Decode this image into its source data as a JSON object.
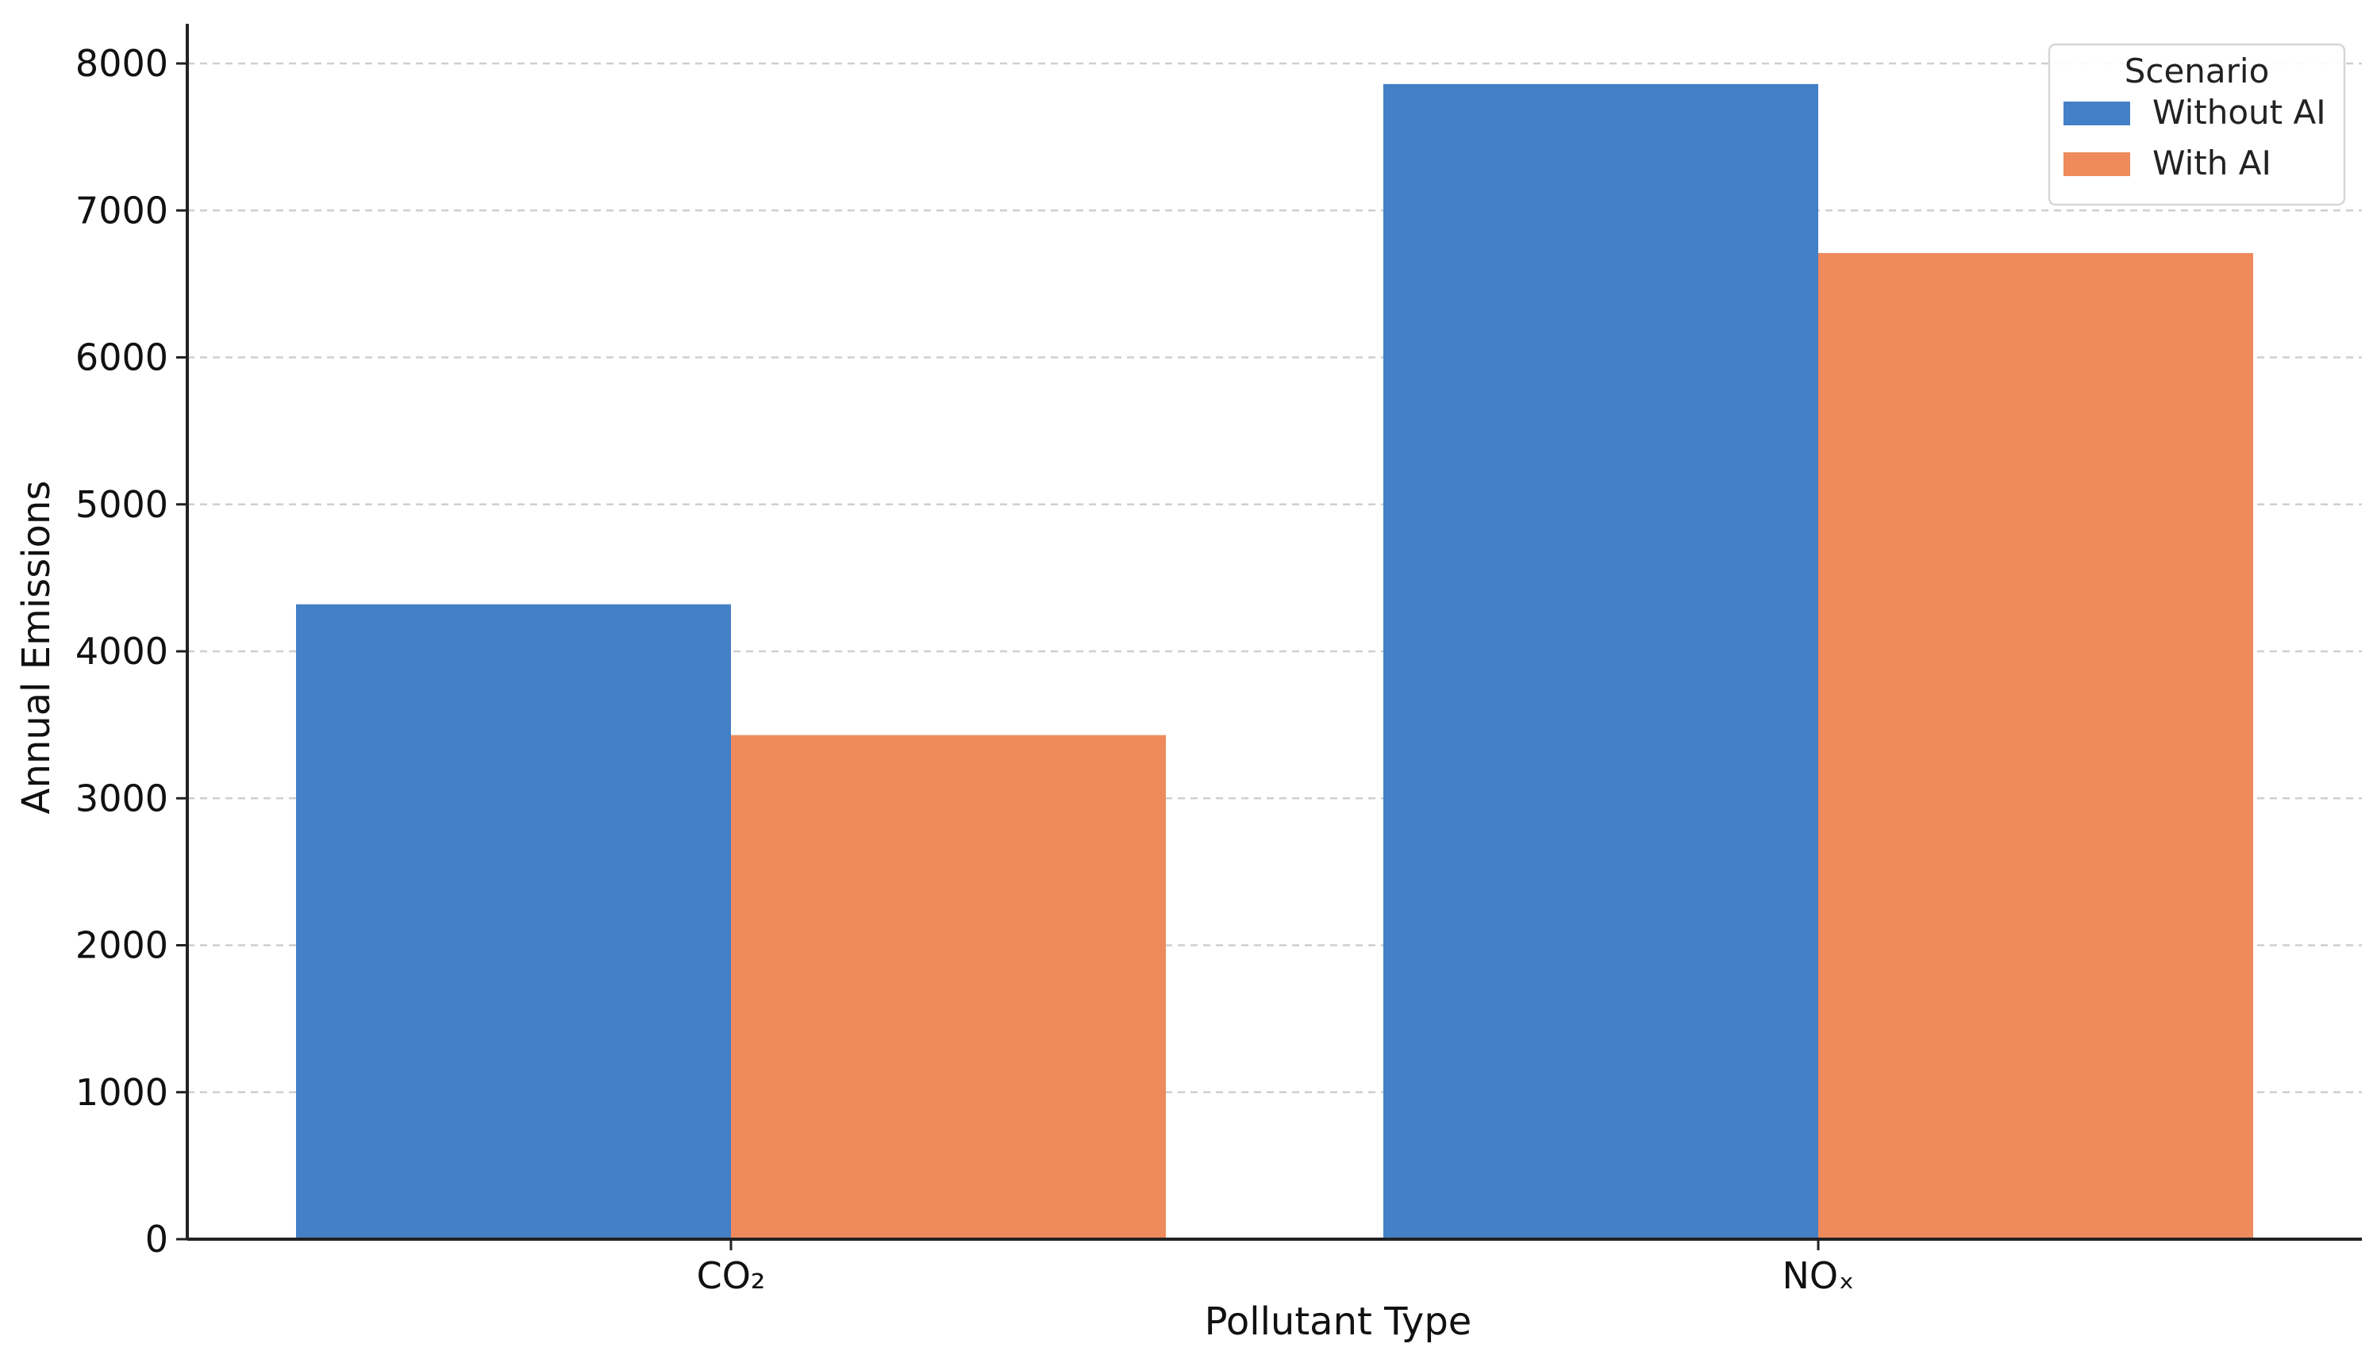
{
  "chart_data": {
    "type": "bar",
    "categories": [
      "CO₂",
      "NOₓ"
    ],
    "series": [
      {
        "name": "Without AI",
        "values": [
          4320,
          7860
        ],
        "color": "#4380c5"
      },
      {
        "name": "With AI",
        "values": [
          3430,
          6710
        ],
        "color": "#ef8a5d"
      }
    ],
    "xlabel": "Pollutant Type",
    "ylabel": "Annual Emissions",
    "ylim": [
      0,
      8000
    ],
    "yticks": [
      0,
      1000,
      2000,
      3000,
      4000,
      5000,
      6000,
      7000,
      8000
    ],
    "grid": "y-dashed",
    "legend": {
      "title": "Scenario",
      "position": "top-right"
    }
  }
}
